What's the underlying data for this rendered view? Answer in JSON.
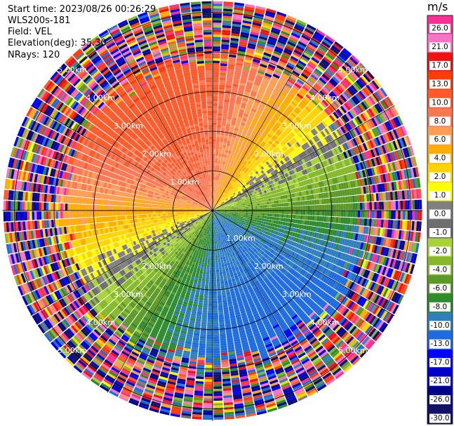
{
  "header": {
    "start_time": "Start time: 2023/08/26 00:26:29",
    "instrument": "WLS200s-181",
    "field": "Field: VEL",
    "elevation": "Elevation(deg): 35.30",
    "nrays": "NRays: 120"
  },
  "chart_data": {
    "type": "ppi",
    "field": "VEL",
    "n_rays": 120,
    "range_rings_km": [
      1.0,
      2.0,
      3.0,
      4.0,
      5.0
    ],
    "range_ring_labels": [
      "1.00km",
      "2.00km",
      "3.00km",
      "4.00km",
      "5.00km"
    ],
    "max_range_km": 5.3,
    "colorbar": {
      "unit": "m/s",
      "vmin": -30.0,
      "vmax": 30.0,
      "tick_labels": [
        "26.0",
        "21.0",
        "17.0",
        "13.0",
        "10.0",
        "8.0",
        "6.0",
        "4.0",
        "2.0",
        "1.0",
        "0.0",
        "-1.0",
        "-2.0",
        "-4.0",
        "-6.0",
        "-8.0",
        "-10.0",
        "-13.0",
        "-17.0",
        "-21.0",
        "-26.0",
        "-30.0"
      ],
      "bins": [
        {
          "from": 26,
          "to": 30,
          "color": "#fb2f96"
        },
        {
          "from": 21,
          "to": 26,
          "color": "#f774c6"
        },
        {
          "from": 17,
          "to": 21,
          "color": "#f11212"
        },
        {
          "from": 13,
          "to": 17,
          "color": "#ff3c08"
        },
        {
          "from": 10,
          "to": 13,
          "color": "#ff5a2a"
        },
        {
          "from": 8,
          "to": 10,
          "color": "#ff7652"
        },
        {
          "from": 6,
          "to": 8,
          "color": "#ff9d55"
        },
        {
          "from": 4,
          "to": 6,
          "color": "#ffad00"
        },
        {
          "from": 2,
          "to": 4,
          "color": "#ffd400"
        },
        {
          "from": 1,
          "to": 2,
          "color": "#ffff00"
        },
        {
          "from": 0,
          "to": 1,
          "color": "#808080"
        },
        {
          "from": -1,
          "to": 0,
          "color": "#6e6e6e"
        },
        {
          "from": -2,
          "to": -1,
          "color": "#a8d23a"
        },
        {
          "from": -4,
          "to": -2,
          "color": "#85b82b"
        },
        {
          "from": -6,
          "to": -4,
          "color": "#5c9a27"
        },
        {
          "from": -8,
          "to": -6,
          "color": "#2e8b2e"
        },
        {
          "from": -10,
          "to": -8,
          "color": "#2f7fbf"
        },
        {
          "from": -13,
          "to": -10,
          "color": "#1e6be0"
        },
        {
          "from": -17,
          "to": -13,
          "color": "#0000ff"
        },
        {
          "from": -21,
          "to": -17,
          "color": "#0000c8"
        },
        {
          "from": -26,
          "to": -21,
          "color": "#00008b"
        },
        {
          "from": -30,
          "to": -26,
          "color": "#111166"
        }
      ]
    },
    "velocity_pattern": {
      "description_note": "radial velocity increases toward the north-west, decreases toward the south-east",
      "toward_azimuth_deg": 330,
      "amplitude_ms": 10,
      "noise_start_km": 3.8
    }
  }
}
